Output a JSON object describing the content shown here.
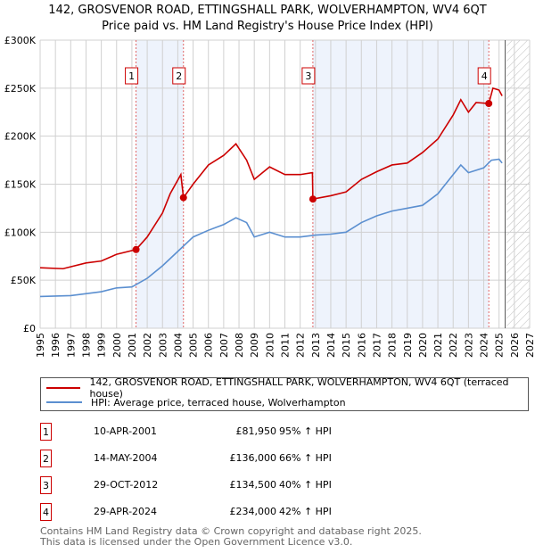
{
  "chart_data": {
    "type": "line",
    "title": "142, GROSVENOR ROAD, ETTINGSHALL PARK, WOLVERHAMPTON, WV4 6QT",
    "subtitle": "Price paid vs. HM Land Registry's House Price Index (HPI)",
    "xlim": [
      1995,
      2027
    ],
    "ylim": [
      0,
      300000
    ],
    "yticks": [
      0,
      50000,
      100000,
      150000,
      200000,
      250000,
      300000
    ],
    "ytick_labels": [
      "£0",
      "£50K",
      "£100K",
      "£150K",
      "£200K",
      "£250K",
      "£300K"
    ],
    "xticks": [
      "1995",
      "1996",
      "1997",
      "1998",
      "1999",
      "2000",
      "2001",
      "2002",
      "2003",
      "2004",
      "2005",
      "2006",
      "2007",
      "2008",
      "2009",
      "2010",
      "2011",
      "2012",
      "2013",
      "2014",
      "2015",
      "2016",
      "2017",
      "2018",
      "2019",
      "2020",
      "2021",
      "2022",
      "2023",
      "2024",
      "2025",
      "2026",
      "2027"
    ],
    "grid": true,
    "shaded_ranges": [
      [
        2001.27,
        2004.37
      ],
      [
        2012.83,
        2024.33
      ]
    ],
    "forecast_hatch_from": 2025.5,
    "series": [
      {
        "name": "142, GROSVENOR ROAD, ETTINGSHALL PARK, WOLVERHAMPTON, WV4 6QT (terraced house)",
        "color": "#cc0000",
        "x": [
          1995,
          1996.5,
          1998,
          1999,
          2000,
          2001.27,
          2002,
          2003,
          2003.5,
          2004.2,
          2004.37,
          2005,
          2006,
          2007,
          2007.8,
          2008.5,
          2009,
          2010,
          2011,
          2012,
          2012.8,
          2012.83,
          2014,
          2015,
          2016,
          2017,
          2018,
          2019,
          2020,
          2021,
          2022,
          2022.5,
          2023,
          2023.5,
          2024.33,
          2024.6,
          2025,
          2025.2
        ],
        "y": [
          63000,
          62000,
          68000,
          70000,
          77000,
          81950,
          95000,
          120000,
          140000,
          160000,
          136000,
          150000,
          170000,
          180000,
          192000,
          175000,
          155000,
          168000,
          160000,
          160000,
          162000,
          134500,
          138000,
          142000,
          155000,
          163000,
          170000,
          172000,
          183000,
          197000,
          222000,
          238000,
          225000,
          235000,
          234000,
          250000,
          248000,
          242000
        ]
      },
      {
        "name": "HPI: Average price, terraced house, Wolverhampton",
        "color": "#5b8fd0",
        "x": [
          1995,
          1997,
          1999,
          2000,
          2001,
          2002,
          2003,
          2004,
          2005,
          2006,
          2007,
          2007.8,
          2008.5,
          2009,
          2010,
          2011,
          2012,
          2013,
          2014,
          2015,
          2016,
          2017,
          2018,
          2019,
          2020,
          2021,
          2022,
          2022.5,
          2023,
          2024,
          2024.5,
          2025,
          2025.2
        ],
        "y": [
          33000,
          34000,
          38000,
          42000,
          43000,
          52000,
          65000,
          80000,
          95000,
          102000,
          108000,
          115000,
          110000,
          95000,
          100000,
          95000,
          95000,
          97000,
          98000,
          100000,
          110000,
          117000,
          122000,
          125000,
          128000,
          140000,
          160000,
          170000,
          162000,
          167000,
          175000,
          176000,
          172000
        ]
      }
    ],
    "sales": [
      {
        "label": "1",
        "x": 2001.27,
        "price": 81950,
        "date": "10-APR-2001",
        "price_text": "£81,950",
        "hpi": "95% ↑ HPI"
      },
      {
        "label": "2",
        "x": 2004.37,
        "price": 136000,
        "date": "14-MAY-2004",
        "price_text": "£136,000",
        "hpi": "66% ↑ HPI"
      },
      {
        "label": "3",
        "x": 2012.83,
        "price": 134500,
        "date": "29-OCT-2012",
        "price_text": "£134,500",
        "hpi": "40% ↑ HPI"
      },
      {
        "label": "4",
        "x": 2024.33,
        "price": 234000,
        "date": "29-APR-2024",
        "price_text": "£234,000",
        "hpi": "42% ↑ HPI"
      }
    ]
  },
  "footer": {
    "line1": "Contains HM Land Registry data © Crown copyright and database right 2025.",
    "line2": "This data is licensed under the Open Government Licence v3.0."
  }
}
